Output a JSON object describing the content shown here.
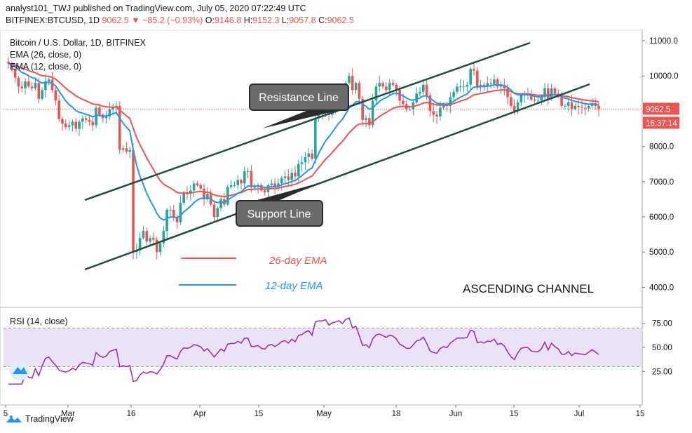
{
  "header": {
    "line1": "analyst101_TWJ published on TradingView.com, July 05, 2020 07:22:49 UTC",
    "symbol": "BITFINEX:BTCUSD, 1D",
    "price": "9062.5",
    "change": "−85.2 (−0.93%)",
    "o_label": "O:",
    "o": "9146.8",
    "h_label": "H:",
    "h": "9152.3",
    "l_label": "L:",
    "l": "9057.8",
    "c_label": "C:",
    "c": "9062.5"
  },
  "legend": {
    "title": "Bitcoin / U.S. Dollar, 1D, BITFINEX",
    "ema26": "EMA (26, close, 0)",
    "ema12": "EMA (12, close, 0)"
  },
  "annotations": {
    "resistance": "Resistance Line",
    "support": "Support Line",
    "ema26_label": "26-day EMA",
    "ema12_label": "12-day EMA",
    "pattern": "ASCENDING CHANNEL"
  },
  "price_tags": {
    "last": "9062.5",
    "countdown": "16:37:14"
  },
  "rsi_legend": "RSI (14, close)",
  "footer": {
    "brand": "TradingView"
  },
  "colors": {
    "up": "#26a69a",
    "down": "#ef5350",
    "ema26": "#ef5350",
    "ema12": "#2196f3",
    "channel": "#1e4d45",
    "rsi": "#9c27b0",
    "rsi_band": "#ece2f6"
  },
  "chart_data": {
    "type": "candlestick",
    "title": "Bitcoin / U.S. Dollar, 1D, BITFINEX",
    "x_ticks": [
      "5",
      "Mar",
      "16",
      "Apr",
      "15",
      "May",
      "18",
      "Jun",
      "15",
      "Jul",
      "15"
    ],
    "y_ticks": [
      "11000.0",
      "10000.0",
      "9000.0",
      "8000.0",
      "7000.0",
      "6000.0",
      "5000.0",
      "4000.0"
    ],
    "ylim": [
      3450,
      11300
    ],
    "close_series": [
      10350,
      10200,
      9950,
      9700,
      9650,
      9850,
      9700,
      9650,
      9800,
      9350,
      9600,
      9850,
      9900,
      9600,
      9300,
      8780,
      8650,
      8550,
      8600,
      8700,
      8500,
      8700,
      8800,
      8750,
      8700,
      8600,
      9100,
      8900,
      8800,
      8850,
      9050,
      9100,
      9150,
      7900,
      7950,
      7850,
      7900,
      5000,
      5050,
      5400,
      5600,
      5300,
      5400,
      5350,
      5000,
      5250,
      5600,
      6200,
      6200,
      6000,
      5850,
      6400,
      6700,
      6650,
      6750,
      6950,
      6900,
      6800,
      6500,
      6650,
      6350,
      6000,
      6250,
      6500,
      6350,
      6850,
      6900,
      6900,
      7050,
      6950,
      7300,
      7300,
      6850,
      6850,
      6900,
      6750,
      6700,
      6900,
      6950,
      6850,
      6950,
      7100,
      7150,
      7050,
      7250,
      7150,
      7500,
      7550,
      7700,
      7800,
      7650,
      8800,
      8950,
      8950,
      9100,
      8900,
      9150,
      9250,
      9400,
      9300,
      9800,
      10000,
      9600,
      9800,
      9350,
      8750,
      8800,
      8600,
      9300,
      9700,
      9800,
      9700,
      9600,
      9800,
      9750,
      9600,
      9300,
      9200,
      9050,
      9050,
      9250,
      9500,
      9550,
      9750,
      9450,
      9000,
      8900,
      8850,
      9100,
      9200,
      9150,
      9400,
      9550,
      9700,
      9700,
      9700,
      9750,
      10200,
      10150,
      9700,
      9750,
      9700,
      9800,
      9780,
      9900,
      9700,
      9750,
      9650,
      9400,
      9150,
      9000,
      9250,
      9450,
      9480,
      9480,
      9330,
      9300,
      9300,
      9400,
      9650,
      9350,
      9650,
      9500,
      9400,
      9150,
      9150,
      9250,
      9060,
      9150,
      9120,
      9100,
      9080,
      9150,
      9230,
      9150,
      9060
    ],
    "rsi": {
      "ylim": [
        10,
        90
      ],
      "y_ticks": [
        "75.00",
        "50.00",
        "25.00"
      ],
      "band": [
        30,
        70
      ]
    }
  }
}
